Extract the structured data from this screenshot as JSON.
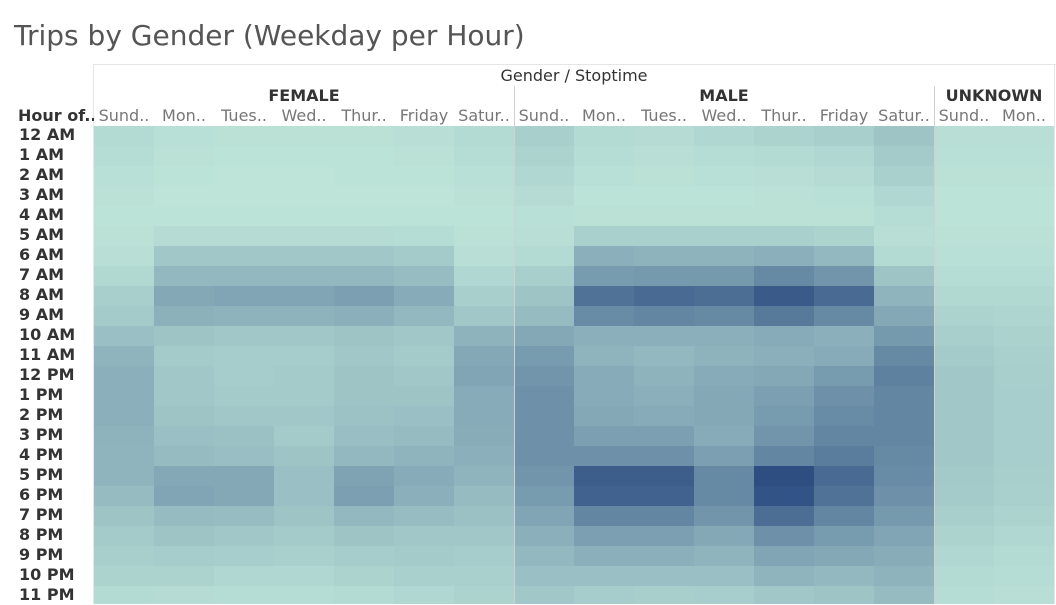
{
  "title": "Trips by Gender (Weekday per Hour)",
  "chart_data": {
    "type": "heatmap",
    "title": "Trips by Gender (Weekday per Hour)",
    "column_header": "Gender / Stoptime",
    "row_header": "Hour of..",
    "groups": [
      {
        "name": "FEMALE",
        "days": [
          "Sund..",
          "Mon..",
          "Tues..",
          "Wed..",
          "Thur..",
          "Friday",
          "Satur.."
        ]
      },
      {
        "name": "MALE",
        "days": [
          "Sund..",
          "Mon..",
          "Tues..",
          "Wed..",
          "Thur..",
          "Friday",
          "Satur.."
        ]
      },
      {
        "name": "UNKNOWN",
        "days": [
          "Sund..",
          "Mon.."
        ]
      }
    ],
    "hours": [
      "12 AM",
      "1 AM",
      "2 AM",
      "3 AM",
      "4 AM",
      "5 AM",
      "6 AM",
      "7 AM",
      "8 AM",
      "9 AM",
      "10 AM",
      "11 AM",
      "12 PM",
      "1 PM",
      "2 PM",
      "3 PM",
      "4 PM",
      "5 PM",
      "6 PM",
      "7 PM",
      "8 PM",
      "9 PM",
      "10 PM",
      "11 PM"
    ],
    "color_range": [
      "#bfe6da",
      "#2b4b80"
    ],
    "values": [
      [
        0.08,
        0.04,
        0.03,
        0.03,
        0.03,
        0.05,
        0.08,
        0.15,
        0.08,
        0.07,
        0.1,
        0.12,
        0.15,
        0.22,
        0.05,
        0.05
      ],
      [
        0.06,
        0.03,
        0.02,
        0.02,
        0.02,
        0.03,
        0.06,
        0.12,
        0.06,
        0.05,
        0.06,
        0.08,
        0.1,
        0.18,
        0.04,
        0.04
      ],
      [
        0.04,
        0.02,
        0.01,
        0.01,
        0.02,
        0.02,
        0.04,
        0.1,
        0.04,
        0.03,
        0.04,
        0.05,
        0.07,
        0.14,
        0.03,
        0.03
      ],
      [
        0.03,
        0.01,
        0.01,
        0.01,
        0.01,
        0.01,
        0.03,
        0.07,
        0.02,
        0.02,
        0.02,
        0.03,
        0.04,
        0.1,
        0.02,
        0.02
      ],
      [
        0.02,
        0.02,
        0.02,
        0.02,
        0.02,
        0.02,
        0.02,
        0.04,
        0.03,
        0.03,
        0.03,
        0.03,
        0.03,
        0.06,
        0.02,
        0.02
      ],
      [
        0.03,
        0.07,
        0.07,
        0.07,
        0.07,
        0.06,
        0.03,
        0.05,
        0.14,
        0.14,
        0.14,
        0.14,
        0.12,
        0.05,
        0.03,
        0.03
      ],
      [
        0.05,
        0.2,
        0.2,
        0.2,
        0.2,
        0.18,
        0.05,
        0.08,
        0.35,
        0.33,
        0.33,
        0.35,
        0.3,
        0.08,
        0.04,
        0.04
      ],
      [
        0.09,
        0.3,
        0.3,
        0.3,
        0.3,
        0.27,
        0.1,
        0.15,
        0.48,
        0.5,
        0.5,
        0.6,
        0.52,
        0.22,
        0.06,
        0.06
      ],
      [
        0.15,
        0.4,
        0.42,
        0.42,
        0.45,
        0.38,
        0.15,
        0.22,
        0.75,
        0.8,
        0.78,
        0.9,
        0.8,
        0.32,
        0.09,
        0.09
      ],
      [
        0.18,
        0.34,
        0.33,
        0.33,
        0.35,
        0.3,
        0.2,
        0.28,
        0.58,
        0.62,
        0.6,
        0.7,
        0.6,
        0.4,
        0.12,
        0.11
      ],
      [
        0.25,
        0.22,
        0.2,
        0.2,
        0.22,
        0.2,
        0.33,
        0.4,
        0.35,
        0.35,
        0.35,
        0.38,
        0.35,
        0.5,
        0.15,
        0.13
      ],
      [
        0.32,
        0.18,
        0.17,
        0.17,
        0.2,
        0.18,
        0.4,
        0.48,
        0.32,
        0.3,
        0.33,
        0.35,
        0.38,
        0.6,
        0.18,
        0.14
      ],
      [
        0.35,
        0.2,
        0.17,
        0.18,
        0.22,
        0.2,
        0.42,
        0.52,
        0.38,
        0.33,
        0.38,
        0.4,
        0.48,
        0.65,
        0.2,
        0.15
      ],
      [
        0.35,
        0.2,
        0.18,
        0.18,
        0.22,
        0.22,
        0.38,
        0.55,
        0.38,
        0.35,
        0.4,
        0.45,
        0.55,
        0.62,
        0.2,
        0.16
      ],
      [
        0.35,
        0.22,
        0.2,
        0.2,
        0.23,
        0.25,
        0.38,
        0.55,
        0.4,
        0.38,
        0.4,
        0.48,
        0.58,
        0.62,
        0.2,
        0.16
      ],
      [
        0.33,
        0.25,
        0.24,
        0.18,
        0.26,
        0.28,
        0.37,
        0.55,
        0.45,
        0.45,
        0.38,
        0.52,
        0.62,
        0.62,
        0.2,
        0.16
      ],
      [
        0.32,
        0.28,
        0.26,
        0.22,
        0.3,
        0.32,
        0.35,
        0.55,
        0.55,
        0.55,
        0.45,
        0.62,
        0.68,
        0.6,
        0.2,
        0.16
      ],
      [
        0.32,
        0.4,
        0.4,
        0.25,
        0.43,
        0.38,
        0.32,
        0.52,
        0.88,
        0.88,
        0.6,
        0.98,
        0.8,
        0.58,
        0.19,
        0.15
      ],
      [
        0.28,
        0.42,
        0.4,
        0.25,
        0.45,
        0.35,
        0.28,
        0.48,
        0.85,
        0.85,
        0.6,
        0.95,
        0.75,
        0.55,
        0.18,
        0.14
      ],
      [
        0.22,
        0.28,
        0.27,
        0.22,
        0.3,
        0.27,
        0.24,
        0.42,
        0.62,
        0.62,
        0.52,
        0.78,
        0.62,
        0.5,
        0.15,
        0.12
      ],
      [
        0.18,
        0.22,
        0.2,
        0.18,
        0.22,
        0.2,
        0.2,
        0.35,
        0.45,
        0.45,
        0.4,
        0.55,
        0.48,
        0.42,
        0.12,
        0.1
      ],
      [
        0.15,
        0.17,
        0.16,
        0.14,
        0.17,
        0.18,
        0.17,
        0.3,
        0.35,
        0.35,
        0.32,
        0.42,
        0.4,
        0.37,
        0.1,
        0.08
      ],
      [
        0.12,
        0.12,
        0.1,
        0.1,
        0.12,
        0.14,
        0.14,
        0.25,
        0.25,
        0.25,
        0.25,
        0.32,
        0.3,
        0.33,
        0.08,
        0.06
      ],
      [
        0.08,
        0.07,
        0.06,
        0.06,
        0.08,
        0.1,
        0.12,
        0.2,
        0.17,
        0.15,
        0.16,
        0.2,
        0.22,
        0.28,
        0.06,
        0.05
      ]
    ]
  }
}
